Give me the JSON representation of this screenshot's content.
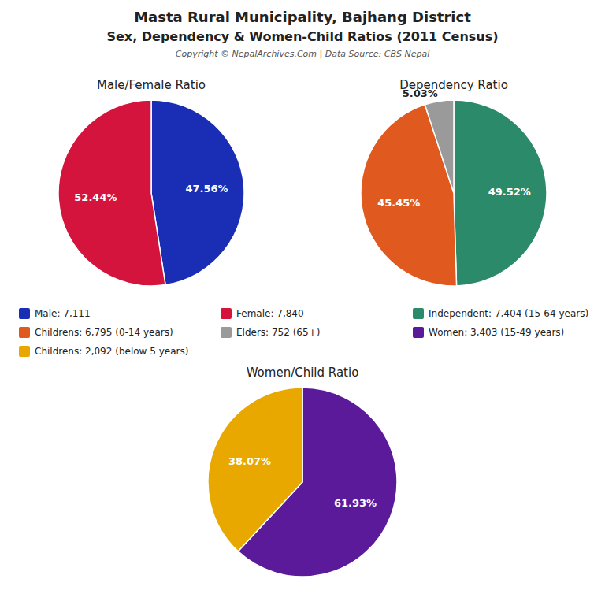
{
  "title": "Masta Rural Municipality, Bajhang District",
  "subtitle": "Sex, Dependency & Women-Child Ratios (2011 Census)",
  "annotations": [
    "Copyright © NepalArchives.Com | Data Source: CBS Nepal"
  ],
  "chart_data": [
    {
      "type": "pie",
      "title": "Male/Female Ratio",
      "categories": [
        "Male: 7,111",
        "Female: 7,840"
      ],
      "values": [
        47.56,
        52.44
      ],
      "value_labels": [
        "47.56%",
        "52.44%"
      ],
      "colors": [
        "#1a2db5",
        "#d4143c"
      ],
      "data_labels": true,
      "legend": "center"
    },
    {
      "type": "pie",
      "title": "Dependency Ratio",
      "categories": [
        "Independent: 7,404 (15-64 years)",
        "Childrens: 6,795 (0-14 years)",
        "Elders: 752 (65+)"
      ],
      "values": [
        49.52,
        45.45,
        5.03
      ],
      "value_labels": [
        "49.52%",
        "45.45%",
        "5.03%"
      ],
      "colors": [
        "#2a8a6a",
        "#e05a20",
        "#9a9a9a"
      ],
      "data_labels": true,
      "legend": "center"
    },
    {
      "type": "pie",
      "title": "Women/Child Ratio",
      "categories": [
        "Women: 3,403 (15-49 years)",
        "Childrens: 2,092 (below 5 years)"
      ],
      "values": [
        61.93,
        38.07
      ],
      "value_labels": [
        "61.93%",
        "38.07%"
      ],
      "colors": [
        "#5a1a9a",
        "#e8a800"
      ],
      "data_labels": true,
      "legend": "center"
    }
  ]
}
